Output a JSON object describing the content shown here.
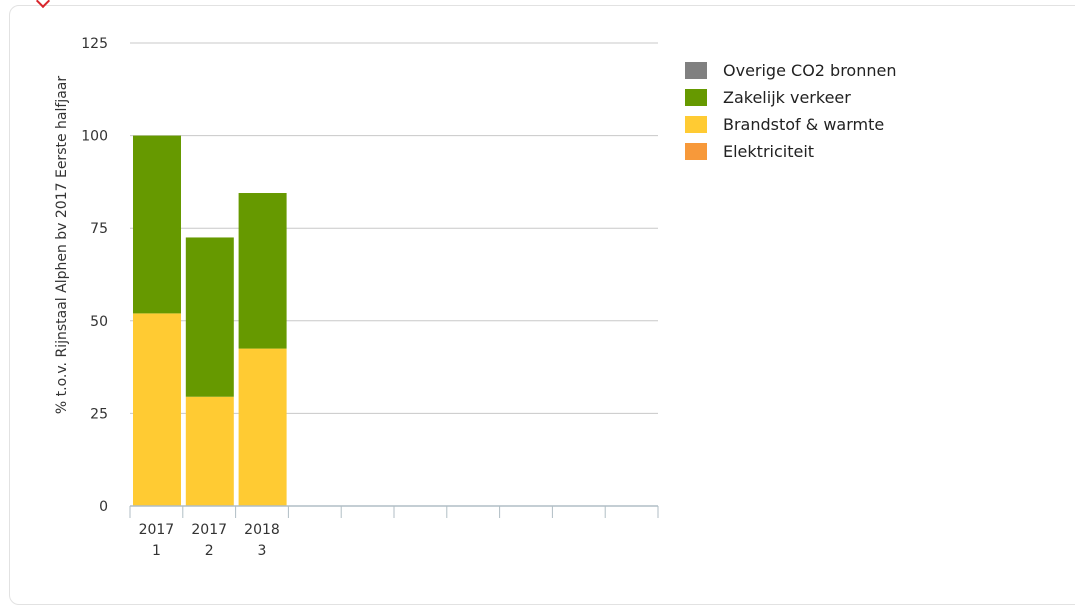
{
  "chart_data": {
    "type": "bar",
    "stacked": true,
    "ylabel": "% t.o.v. Rijnstaal Alphen bv 2017 Eerste halfjaar",
    "ylim": [
      0,
      125
    ],
    "yticks": [
      0,
      25,
      50,
      75,
      100,
      125
    ],
    "categories": [
      {
        "top": "2017",
        "bottom": "1"
      },
      {
        "top": "2017",
        "bottom": "2"
      },
      {
        "top": "2018",
        "bottom": "3"
      }
    ],
    "empty_slots": 7,
    "grid": true,
    "legend_position": "right",
    "series": [
      {
        "name": "Elektriciteit",
        "color": "#f7993a",
        "values": [
          0,
          0,
          0
        ]
      },
      {
        "name": "Brandstof & warmte",
        "color": "#ffcb33",
        "values": [
          52,
          29.5,
          42.5
        ]
      },
      {
        "name": "Zakelijk verkeer",
        "color": "#669900",
        "values": [
          48,
          43,
          42
        ]
      },
      {
        "name": "Overige CO2 bronnen",
        "color": "#808080",
        "values": [
          0,
          0,
          0
        ]
      }
    ],
    "legend": [
      {
        "name": "Overige CO2 bronnen",
        "color": "#808080"
      },
      {
        "name": "Zakelijk verkeer",
        "color": "#669900"
      },
      {
        "name": "Brandstof & warmte",
        "color": "#ffcb33"
      },
      {
        "name": "Elektriciteit",
        "color": "#f7993a"
      }
    ]
  }
}
